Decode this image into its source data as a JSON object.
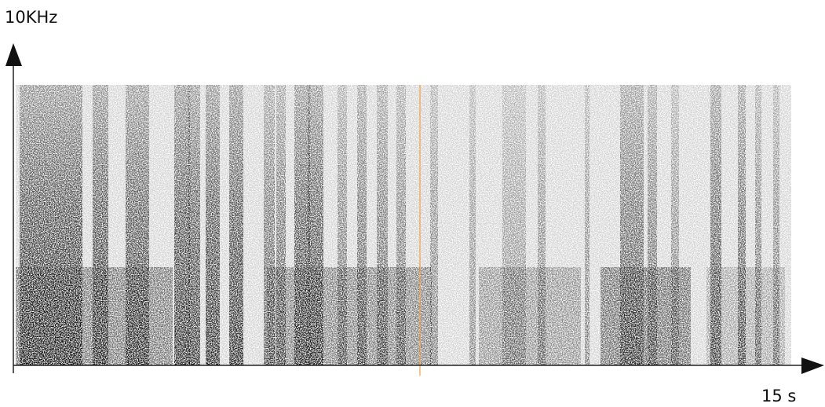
{
  "y_axis_label": "10KHz",
  "x_axis_label": "15 s"
}
